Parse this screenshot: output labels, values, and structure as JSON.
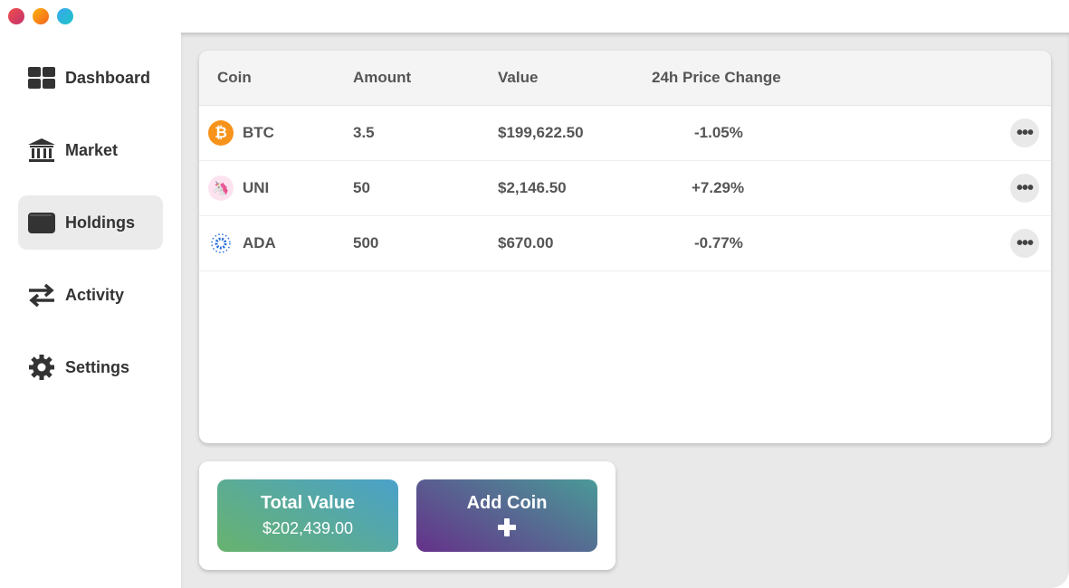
{
  "window": {
    "controls": [
      "close",
      "minimize",
      "maximize"
    ]
  },
  "sidebar": {
    "items": [
      {
        "label": "Dashboard",
        "icon": "grid-icon"
      },
      {
        "label": "Market",
        "icon": "bank-icon"
      },
      {
        "label": "Holdings",
        "icon": "wallet-icon",
        "active": true
      },
      {
        "label": "Activity",
        "icon": "arrows-exchange-icon"
      },
      {
        "label": "Settings",
        "icon": "gear-icon"
      }
    ]
  },
  "table": {
    "headers": [
      "Coin",
      "Amount",
      "Value",
      "24h Price Change"
    ],
    "rows": [
      {
        "coin": "BTC",
        "amount": "3.5",
        "value": "$199,622.50",
        "change": "-1.05%",
        "icon_color": "#f7931a"
      },
      {
        "coin": "UNI",
        "amount": "50",
        "value": "$2,146.50",
        "change": "+7.29%",
        "icon_color": "#ff007a"
      },
      {
        "coin": "ADA",
        "amount": "500",
        "value": "$670.00",
        "change": "-0.77%",
        "icon_color": "#0033ad"
      }
    ]
  },
  "summary": {
    "total_label": "Total Value",
    "total_value": "$202,439.00",
    "add_label": "Add Coin"
  }
}
